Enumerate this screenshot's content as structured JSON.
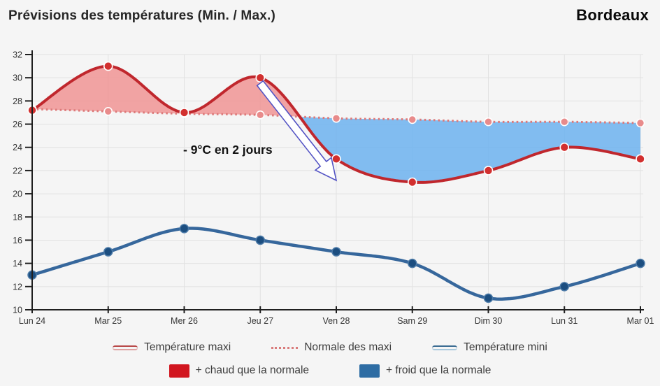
{
  "header": {
    "title": "Prévisions des températures (Min. / Max.)",
    "city": "Bordeaux"
  },
  "annotation": {
    "text": "- 9°C en 2 jours",
    "arrow": {
      "from": [
        372,
        119
      ],
      "to": [
        481,
        258
      ]
    }
  },
  "legend": {
    "maxi": "Température maxi",
    "normale": "Normale des maxi",
    "mini": "Température mini",
    "warmer": "+ chaud que la normale",
    "colder": "+ froid que la normale"
  },
  "colors": {
    "maxi_line": "#c0272d",
    "maxi_marker": "#d2302f",
    "normale_line": "#dd7a7a",
    "normale_marker": "#e88b8b",
    "mini_line": "#36679c",
    "mini_marker": "#1c4e80",
    "warm_fill": "#f09494",
    "cold_fill": "#6cb2ee",
    "warm_swatch": "#d1161f",
    "cold_swatch": "#2e6da4",
    "arrow_stroke": "#5353c4",
    "axis": "#1f1f1f",
    "grid": "#e1e1e1",
    "tick_label": "#333333"
  },
  "chart_data": {
    "type": "line",
    "title": "Prévisions des températures (Min. / Max.)",
    "xlabel": "",
    "ylabel": "",
    "ylim": [
      10,
      32
    ],
    "ytick_step": 2,
    "grid": true,
    "legend_position": "bottom",
    "categories": [
      "Lun 24",
      "Mar 25",
      "Mer 26",
      "Jeu 27",
      "Ven 28",
      "Sam 29",
      "Dim 30",
      "Lun 31",
      "Mar 01"
    ],
    "series": [
      {
        "name": "Température maxi",
        "style": "solid",
        "values": [
          27.2,
          31,
          27,
          30,
          23,
          21,
          22,
          24,
          23
        ]
      },
      {
        "name": "Normale des maxi",
        "style": "dotted",
        "values": [
          27.3,
          27.1,
          26.9,
          26.8,
          26.5,
          26.4,
          26.2,
          26.2,
          26.1
        ]
      },
      {
        "name": "Température mini",
        "style": "solid",
        "values": [
          13,
          15,
          17,
          16,
          15,
          14,
          11,
          12,
          14
        ]
      }
    ],
    "fills": [
      {
        "name": "+ chaud que la normale",
        "condition": "maxi > normale",
        "color": "#f09494"
      },
      {
        "name": "+ froid que la normale",
        "condition": "maxi < normale",
        "color": "#6cb2ee"
      }
    ],
    "annotations": [
      {
        "text": "- 9°C en 2 jours",
        "arrow_from_category": "Jeu 27",
        "arrow_to_category": "Ven 28"
      }
    ]
  }
}
